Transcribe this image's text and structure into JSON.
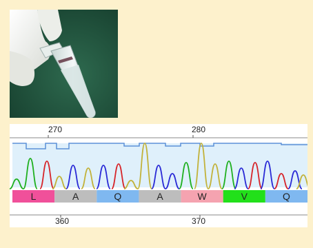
{
  "figure": {
    "top_ruler": {
      "ticks": [
        "270",
        "280"
      ]
    },
    "amino_acids": [
      {
        "label": "L",
        "color": "#f0509a"
      },
      {
        "label": "A",
        "color": "#bdbdbd"
      },
      {
        "label": "Q",
        "color": "#7fb8f0"
      },
      {
        "label": "A",
        "color": "#bdbdbd"
      },
      {
        "label": "W",
        "color": "#f5a3b0"
      },
      {
        "label": "V",
        "color": "#22e01a"
      },
      {
        "label": "Q",
        "color": "#7fb8f0"
      }
    ],
    "bottom_ruler": {
      "ticks": [
        "360",
        "370"
      ]
    },
    "trace_colors": {
      "green": "#1fb01f",
      "red": "#d6252a",
      "blue": "#2a2ad6",
      "gold": "#c2b23a",
      "baseline": "#5b8fd8",
      "band": "#dff0fb"
    }
  }
}
